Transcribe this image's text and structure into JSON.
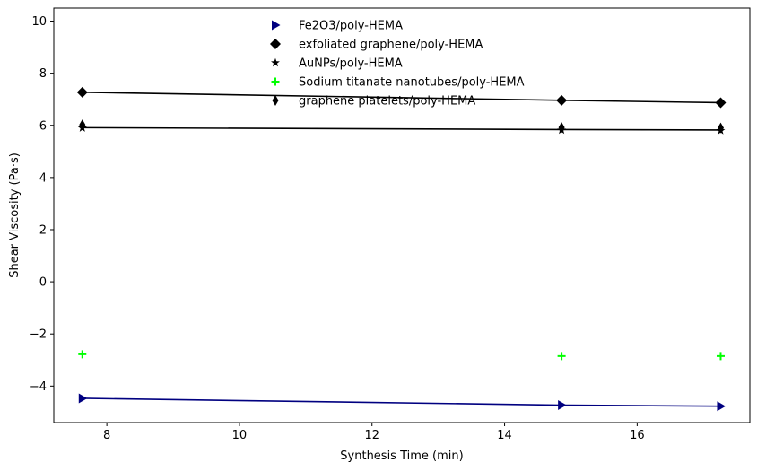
{
  "chart_data": {
    "type": "scatter",
    "title": "",
    "xlabel": "Synthesis Time (min)",
    "ylabel": "Shear Viscosity (Pa·s)",
    "xlim": [
      7.2,
      17.7
    ],
    "ylim": [
      -5.4,
      10.5
    ],
    "xticks": [
      8,
      10,
      12,
      14,
      16
    ],
    "yticks": [
      -4,
      -2,
      0,
      2,
      4,
      6,
      8,
      10
    ],
    "ytick_labels": [
      "−4",
      "−2",
      "0",
      "2",
      "4",
      "6",
      "8",
      "10"
    ],
    "grid": false,
    "legend_position": "upper-center",
    "x": [
      7.63,
      14.86,
      17.26
    ],
    "series": [
      {
        "name": "Fe2O3/poly-HEMA",
        "marker": "triangle-right",
        "color": "#000080",
        "line_color": "#000080",
        "values": [
          -4.47,
          -4.73,
          -4.77
        ],
        "trend": [
          -4.47,
          -4.73,
          -4.77
        ]
      },
      {
        "name": "exfoliated graphene/poly-HEMA",
        "marker": "diamond",
        "color": "#000000",
        "line_color": "#000000",
        "values": [
          7.27,
          6.96,
          6.87
        ],
        "trend": [
          7.27,
          6.96,
          6.87
        ]
      },
      {
        "name": "AuNPs/poly-HEMA",
        "marker": "star",
        "color": "#000000",
        "line_color": "#000000",
        "values": [
          5.9,
          5.82,
          5.8
        ],
        "trend": [
          5.91,
          5.84,
          5.82
        ]
      },
      {
        "name": "Sodium titanate nanotubes/poly-HEMA",
        "marker": "plus",
        "color": "#00ff00",
        "line_color": null,
        "values": [
          -2.78,
          -2.85,
          -2.85
        ],
        "trend": null
      },
      {
        "name": "graphene platelets/poly-HEMA",
        "marker": "thin-diamond",
        "color": "#000000",
        "line_color": null,
        "values": [
          6.02,
          5.92,
          5.9
        ],
        "trend": null
      }
    ]
  }
}
